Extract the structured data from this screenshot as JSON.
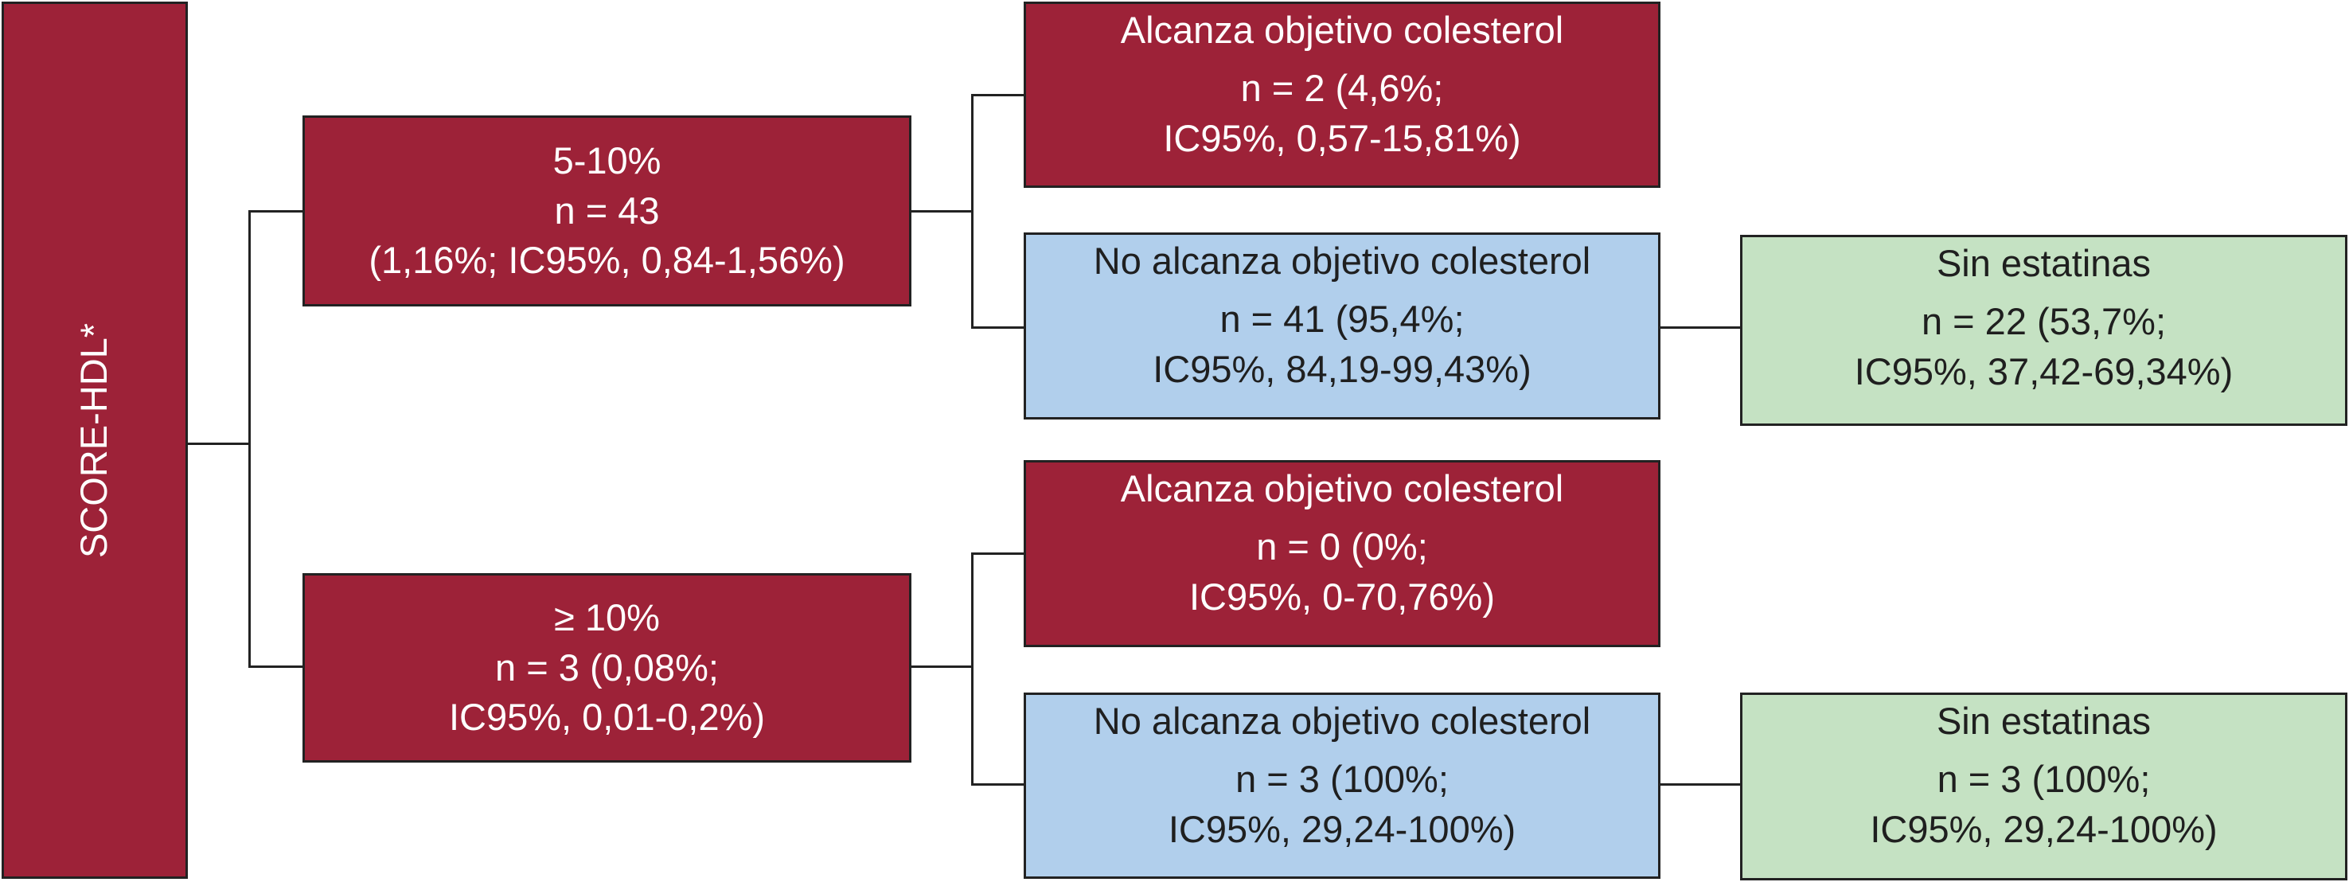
{
  "diagram": {
    "root": {
      "label": "SCORE-HDL*"
    },
    "groups": [
      {
        "range": "5-10%",
        "n": "n = 43",
        "detail": "(1,16%; IC95%, 0,84-1,56%)",
        "achieves": {
          "title": "Alcanza objetivo colesterol",
          "line1": "n = 2 (4,6%;",
          "line2": "IC95%, 0,57-15,81%)"
        },
        "not_achieves": {
          "title": "No alcanza objetivo colesterol",
          "line1": "n = 41 (95,4%;",
          "line2": "IC95%, 84,19-99,43%)"
        },
        "no_statins": {
          "title": "Sin estatinas",
          "line1": "n = 22 (53,7%;",
          "line2": "IC95%, 37,42-69,34%)"
        }
      },
      {
        "range": "≥ 10%",
        "n": "n = 3 (0,08%;",
        "detail": "IC95%, 0,01-0,2%)",
        "achieves": {
          "title": "Alcanza objetivo colesterol",
          "line1": "n = 0 (0%;",
          "line2": "IC95%, 0-70,76%)"
        },
        "not_achieves": {
          "title": "No alcanza objetivo colesterol",
          "line1": "n = 3 (100%;",
          "line2": "IC95%, 29,24-100%)"
        },
        "no_statins": {
          "title": "Sin estatinas",
          "line1": "n = 3 (100%;",
          "line2": "IC95%, 29,24-100%)"
        }
      }
    ]
  }
}
